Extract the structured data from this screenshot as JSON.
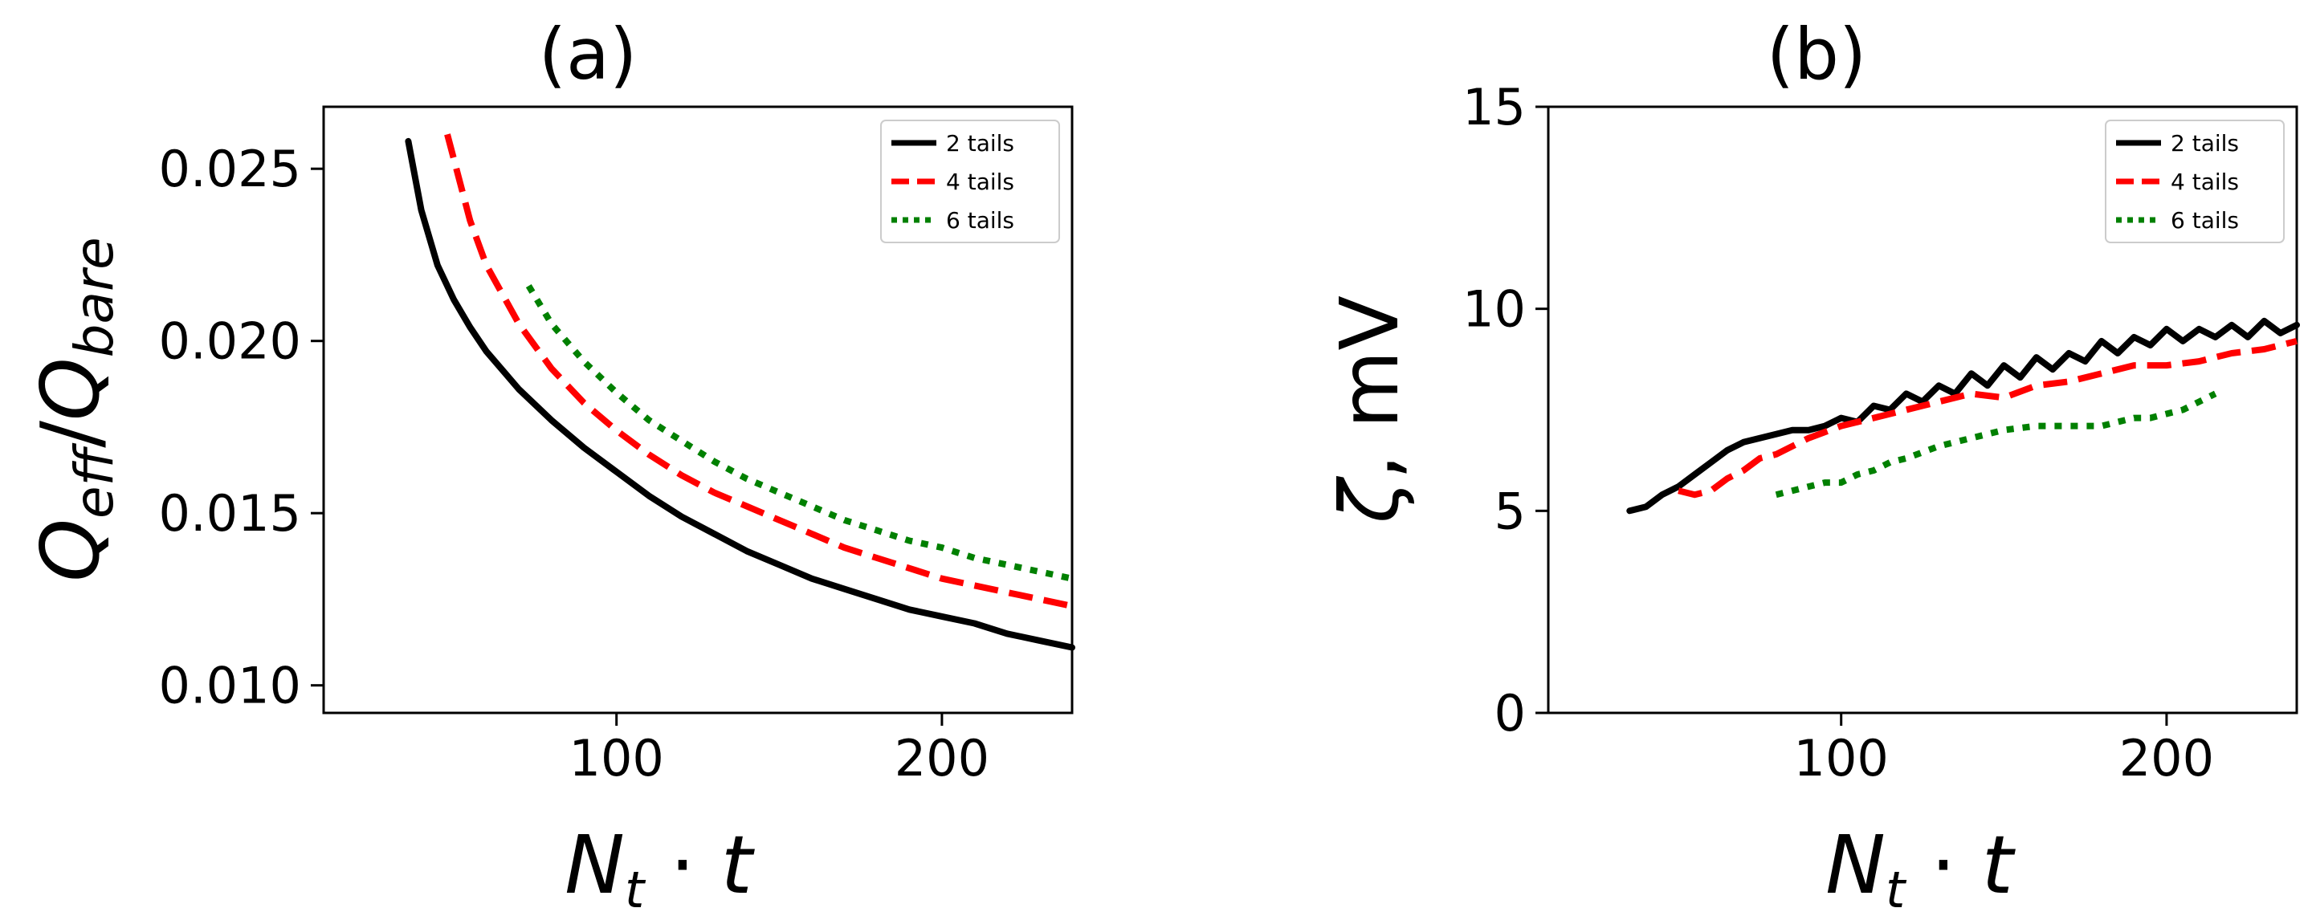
{
  "chart_data": [
    {
      "type": "line",
      "title": "(a)",
      "xlabel": "N_t · t",
      "ylabel": "Q_eff/Q_bare",
      "xlim": [
        10,
        240
      ],
      "ylim": [
        0.0092,
        0.0268
      ],
      "xticks": [
        100,
        200
      ],
      "xtick_labels": [
        "100",
        "200"
      ],
      "yticks": [
        0.01,
        0.015,
        0.02,
        0.025
      ],
      "ytick_labels": [
        "0.010",
        "0.015",
        "0.020",
        "0.025"
      ],
      "legend": "top-right",
      "grid": false,
      "series": [
        {
          "name": "2 tails",
          "color": "#000000",
          "style": "solid",
          "x": [
            36,
            40,
            45,
            50,
            55,
            60,
            70,
            80,
            90,
            100,
            110,
            120,
            130,
            140,
            150,
            160,
            170,
            180,
            190,
            200,
            210,
            220,
            230,
            240
          ],
          "y": [
            0.0258,
            0.0238,
            0.0222,
            0.0212,
            0.0204,
            0.0197,
            0.0186,
            0.0177,
            0.0169,
            0.0162,
            0.0155,
            0.0149,
            0.0144,
            0.0139,
            0.0135,
            0.0131,
            0.0128,
            0.0125,
            0.0122,
            0.012,
            0.0118,
            0.0115,
            0.0113,
            0.0111
          ]
        },
        {
          "name": "4 tails",
          "color": "#ff0000",
          "style": "dashed",
          "x": [
            48,
            55,
            60,
            70,
            80,
            90,
            100,
            110,
            120,
            130,
            140,
            150,
            160,
            170,
            180,
            190,
            200,
            210,
            220,
            230,
            240
          ],
          "y": [
            0.026,
            0.0235,
            0.0222,
            0.0205,
            0.0192,
            0.0182,
            0.0174,
            0.0167,
            0.0161,
            0.0156,
            0.0152,
            0.0148,
            0.0144,
            0.014,
            0.0137,
            0.0134,
            0.0131,
            0.0129,
            0.0127,
            0.0125,
            0.0123
          ]
        },
        {
          "name": "6 tails",
          "color": "#008000",
          "style": "dotted",
          "x": [
            73,
            80,
            90,
            100,
            110,
            120,
            130,
            140,
            150,
            160,
            170,
            180,
            190,
            200,
            210,
            220,
            230,
            240
          ],
          "y": [
            0.0216,
            0.0205,
            0.0194,
            0.0185,
            0.0177,
            0.0171,
            0.0165,
            0.016,
            0.0156,
            0.0152,
            0.0148,
            0.0145,
            0.0142,
            0.014,
            0.0137,
            0.0135,
            0.0133,
            0.0131
          ]
        }
      ]
    },
    {
      "type": "line",
      "title": "(b)",
      "xlabel": "N_t · t",
      "ylabel": "ζ, mV",
      "xlim": [
        10,
        240
      ],
      "ylim": [
        0,
        15
      ],
      "xticks": [
        100,
        200
      ],
      "xtick_labels": [
        "100",
        "200"
      ],
      "yticks": [
        0,
        5,
        10,
        15
      ],
      "ytick_labels": [
        "0",
        "5",
        "10",
        "15"
      ],
      "legend": "top-right",
      "grid": false,
      "series": [
        {
          "name": "2 tails",
          "color": "#000000",
          "style": "solid",
          "x": [
            35,
            40,
            45,
            50,
            55,
            60,
            65,
            70,
            75,
            80,
            85,
            90,
            95,
            100,
            105,
            110,
            115,
            120,
            125,
            130,
            135,
            140,
            145,
            150,
            155,
            160,
            165,
            170,
            175,
            180,
            185,
            190,
            195,
            200,
            205,
            210,
            215,
            220,
            225,
            230,
            235,
            240
          ],
          "y": [
            5.0,
            5.1,
            5.4,
            5.6,
            5.9,
            6.2,
            6.5,
            6.7,
            6.8,
            6.9,
            7.0,
            7.0,
            7.1,
            7.3,
            7.2,
            7.6,
            7.5,
            7.9,
            7.7,
            8.1,
            7.9,
            8.4,
            8.1,
            8.6,
            8.3,
            8.8,
            8.5,
            8.9,
            8.7,
            9.2,
            8.9,
            9.3,
            9.1,
            9.5,
            9.2,
            9.5,
            9.3,
            9.6,
            9.3,
            9.7,
            9.4,
            9.6
          ]
        },
        {
          "name": "4 tails",
          "color": "#ff0000",
          "style": "dashed",
          "x": [
            50,
            55,
            60,
            65,
            70,
            75,
            80,
            90,
            100,
            110,
            120,
            130,
            140,
            150,
            160,
            170,
            180,
            190,
            200,
            210,
            220,
            230,
            240
          ],
          "y": [
            5.5,
            5.4,
            5.5,
            5.8,
            6.0,
            6.3,
            6.4,
            6.8,
            7.1,
            7.3,
            7.5,
            7.7,
            7.9,
            7.8,
            8.1,
            8.2,
            8.4,
            8.6,
            8.6,
            8.7,
            8.9,
            9.0,
            9.2
          ]
        },
        {
          "name": "6 tails",
          "color": "#008000",
          "style": "dotted",
          "x": [
            80,
            85,
            90,
            95,
            100,
            105,
            110,
            115,
            120,
            130,
            140,
            150,
            160,
            170,
            180,
            185,
            190,
            195,
            200,
            205,
            210,
            215
          ],
          "y": [
            5.4,
            5.5,
            5.6,
            5.7,
            5.7,
            5.9,
            6.0,
            6.2,
            6.3,
            6.6,
            6.8,
            7.0,
            7.1,
            7.1,
            7.1,
            7.2,
            7.3,
            7.3,
            7.4,
            7.5,
            7.7,
            7.9
          ]
        }
      ]
    }
  ]
}
